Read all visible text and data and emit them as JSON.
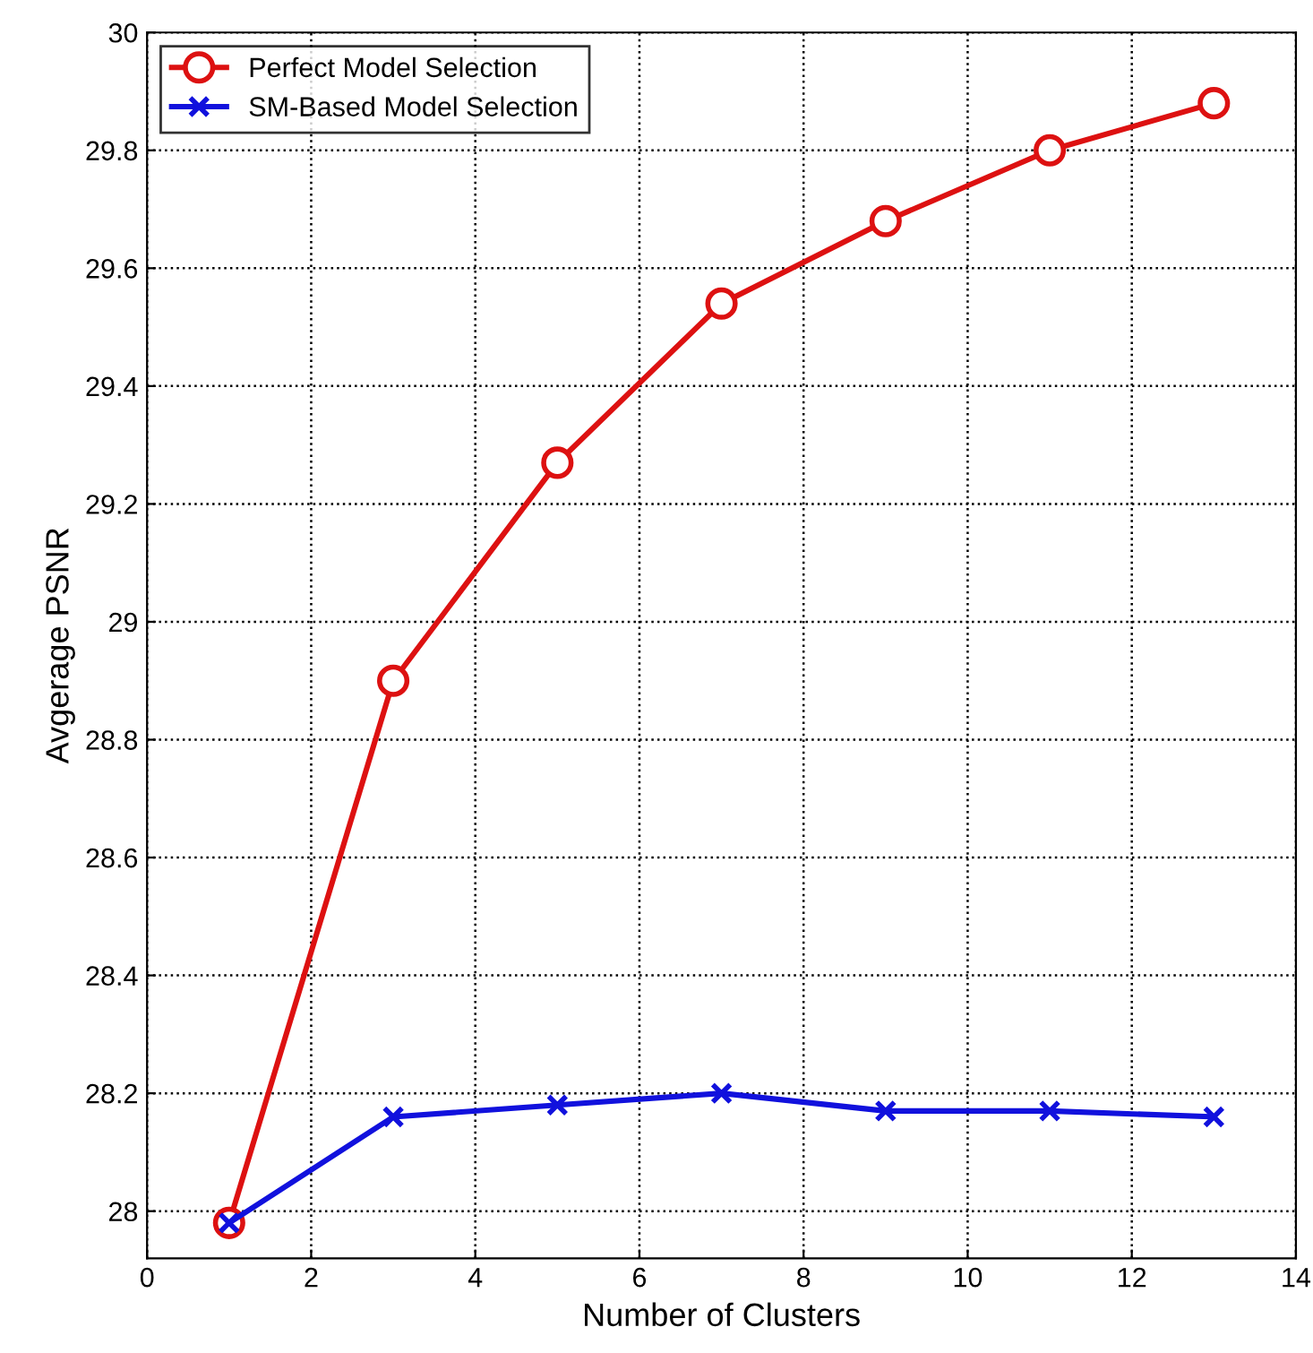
{
  "chart_data": {
    "type": "line",
    "xlabel": "Number of Clusters",
    "ylabel": "Avgerage PSNR",
    "x": [
      1,
      3,
      5,
      7,
      9,
      11,
      13
    ],
    "series": [
      {
        "name": "Perfect Model Selection",
        "color": "#dd1111",
        "marker": "circle",
        "values": [
          27.98,
          28.9,
          29.27,
          29.54,
          29.68,
          29.8,
          29.88
        ]
      },
      {
        "name": "SM-Based Model Selection",
        "color": "#1111dd",
        "marker": "cross",
        "values": [
          27.98,
          28.16,
          28.18,
          28.2,
          28.17,
          28.17,
          28.16
        ]
      }
    ],
    "xlim": [
      0,
      14
    ],
    "xticks": [
      0,
      2,
      4,
      6,
      8,
      10,
      12,
      14
    ],
    "ylim": [
      27.92,
      30
    ],
    "yticks": [
      28,
      28.2,
      28.4,
      28.6,
      28.8,
      29,
      29.2,
      29.4,
      29.6,
      29.8,
      30
    ],
    "grid": true,
    "legend": "top left",
    "line_style": "solid"
  }
}
